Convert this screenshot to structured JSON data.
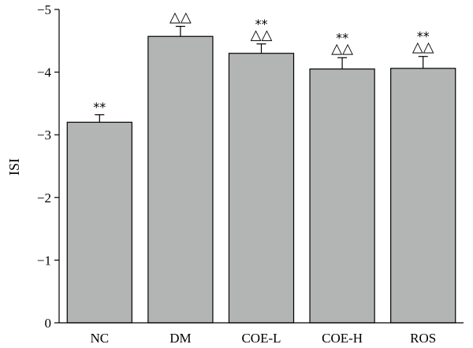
{
  "chart_data": {
    "type": "bar",
    "title": "",
    "xlabel": "",
    "ylabel": "ISI",
    "categories": [
      "NC",
      "DM",
      "COE-L",
      "COE-H",
      "ROS"
    ],
    "values": [
      -3.2,
      -4.57,
      -4.3,
      -4.05,
      -4.06
    ],
    "errors": [
      0.12,
      0.16,
      0.15,
      0.18,
      0.19
    ],
    "annotations_stars": [
      "**",
      "",
      "**",
      "**",
      "**"
    ],
    "annotations_triangles": [
      "",
      "△△",
      "△△",
      "△△",
      "△△"
    ],
    "ylim": [
      0,
      -5
    ],
    "y_ticks": [
      0,
      -1,
      -2,
      -3,
      -4,
      -5
    ],
    "y_tick_labels": [
      "0",
      "−1",
      "−2",
      "−3",
      "−4",
      "−5"
    ],
    "bar_color": "#b3b5b4",
    "grid": false,
    "legend": "none"
  }
}
